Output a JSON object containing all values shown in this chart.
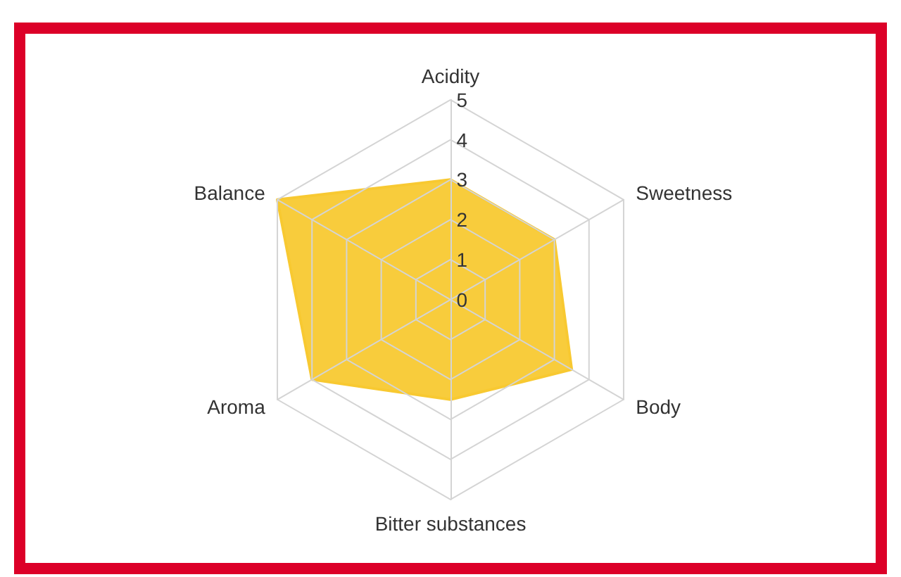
{
  "chart_data": {
    "type": "radar",
    "categories": [
      "Acidity",
      "Sweetness",
      "Body",
      "Bitter substances",
      "Aroma",
      "Balance"
    ],
    "series": [
      {
        "color": "#f8c932",
        "values": [
          3,
          3,
          3.5,
          2.5,
          4,
          5
        ]
      }
    ],
    "ylim": [
      0,
      5
    ],
    "yticks": [
      0,
      1,
      2,
      3,
      4,
      5
    ],
    "grid": true,
    "marker": "none"
  }
}
